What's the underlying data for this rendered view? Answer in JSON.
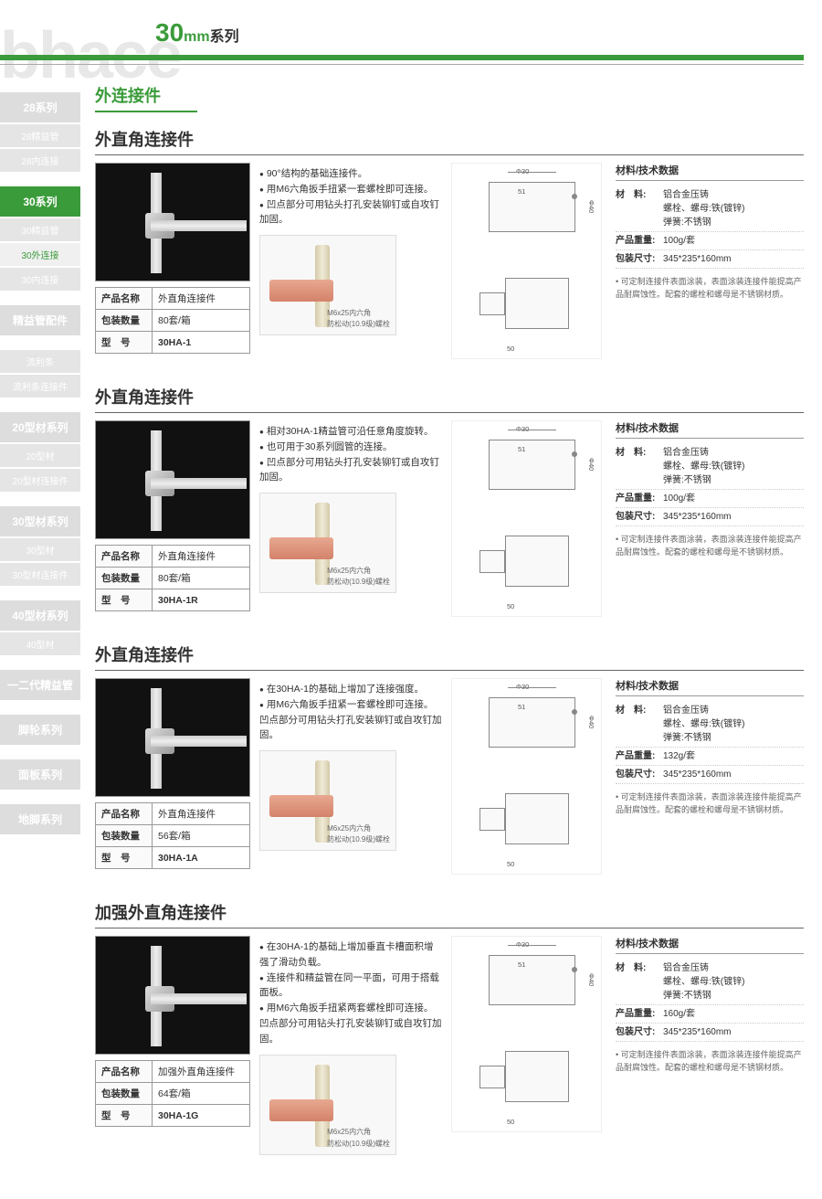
{
  "brand": "bhace",
  "header": {
    "num": "30",
    "mm": "mm",
    "sub": "系列"
  },
  "sectionTitle": "外连接件",
  "nav": [
    {
      "t": "28系列",
      "cls": "nav-item"
    },
    {
      "t": "28精益管",
      "cls": "nav-item sub"
    },
    {
      "t": "28内连接",
      "cls": "nav-item sub"
    },
    {
      "cls": "nav-gap"
    },
    {
      "t": "30系列",
      "cls": "nav-item active"
    },
    {
      "t": "30精益管",
      "cls": "nav-item sub"
    },
    {
      "t": "30外连接",
      "cls": "nav-item sub active-sub"
    },
    {
      "t": "30内连接",
      "cls": "nav-item sub"
    },
    {
      "cls": "nav-gap"
    },
    {
      "t": "精益管配件",
      "cls": "nav-item"
    },
    {
      "cls": "nav-gap"
    },
    {
      "t": "流利条",
      "cls": "nav-item sub"
    },
    {
      "t": "流利条连接件",
      "cls": "nav-item sub"
    },
    {
      "cls": "nav-gap"
    },
    {
      "t": "20型材系列",
      "cls": "nav-item"
    },
    {
      "t": "20型材",
      "cls": "nav-item sub"
    },
    {
      "t": "20型材连接件",
      "cls": "nav-item sub"
    },
    {
      "cls": "nav-gap"
    },
    {
      "t": "30型材系列",
      "cls": "nav-item"
    },
    {
      "t": "30型材",
      "cls": "nav-item sub"
    },
    {
      "t": "30型材连接件",
      "cls": "nav-item sub"
    },
    {
      "cls": "nav-gap"
    },
    {
      "t": "40型材系列",
      "cls": "nav-item"
    },
    {
      "t": "40型材",
      "cls": "nav-item sub"
    },
    {
      "cls": "nav-gap"
    },
    {
      "t": "一二代精益管",
      "cls": "nav-item"
    },
    {
      "cls": "nav-gap"
    },
    {
      "t": "脚轮系列",
      "cls": "nav-item"
    },
    {
      "cls": "nav-gap"
    },
    {
      "t": "面板系列",
      "cls": "nav-item"
    },
    {
      "cls": "nav-gap"
    },
    {
      "t": "地脚系列",
      "cls": "nav-item"
    }
  ],
  "specLabels": {
    "name": "产品名称",
    "pack": "包装数量",
    "model": "型　号"
  },
  "dataLabels": {
    "title": "材料/技术数据",
    "mat": "材　料:",
    "weight": "产品重量:",
    "box": "包装尺寸:"
  },
  "screwNote": "M6x25内六角\n防松动(10.9级)螺栓",
  "dims": {
    "d30": "Φ30",
    "d40": "Φ40",
    "w50": "50",
    "w51": "51",
    "w50_5": "50.5",
    "w25": "25",
    "h61": "61"
  },
  "products": [
    {
      "title": "外直角连接件",
      "desc": [
        "90°结构的基础连接件。",
        "用M6六角扳手扭紧一套螺栓即可连接。",
        "凹点部分可用钻头打孔安装铆钉或自攻钉加固。"
      ],
      "spec": {
        "name": "外直角连接件",
        "pack": "80套/箱",
        "model": "30HA-1"
      },
      "data": {
        "mat": "铝合金压铸\n螺栓、螺母:铁(镀锌)\n弹簧:不锈钢",
        "weight": "100g/套",
        "box": "345*235*160mm"
      },
      "note": "可定制连接件表面涂装，表面涂装连接件能提高产品耐腐蚀性。配套的螺栓和螺母是不锈钢材质。"
    },
    {
      "title": "外直角连接件",
      "desc": [
        "相对30HA-1精益管可沿任意角度旋转。",
        "也可用于30系列圆管的连接。",
        "凹点部分可用钻头打孔安装铆钉或自攻钉加固。"
      ],
      "spec": {
        "name": "外直角连接件",
        "pack": "80套/箱",
        "model": "30HA-1R"
      },
      "data": {
        "mat": "铝合金压铸\n螺栓、螺母:铁(镀锌)\n弹簧:不锈钢",
        "weight": "100g/套",
        "box": "345*235*160mm"
      },
      "note": "可定制连接件表面涂装，表面涂装连接件能提高产品耐腐蚀性。配套的螺栓和螺母是不锈钢材质。"
    },
    {
      "title": "外直角连接件",
      "desc": [
        "在30HA-1的基础上增加了连接强度。",
        "用M6六角扳手扭紧一套螺栓即可连接。凹点部分可用钻头打孔安装铆钉或自攻钉加固。"
      ],
      "spec": {
        "name": "外直角连接件",
        "pack": "56套/箱",
        "model": "30HA-1A"
      },
      "data": {
        "mat": "铝合金压铸\n螺栓、螺母:铁(镀锌)\n弹簧:不锈钢",
        "weight": "132g/套",
        "box": "345*235*160mm"
      },
      "note": "可定制连接件表面涂装，表面涂装连接件能提高产品耐腐蚀性。配套的螺栓和螺母是不锈钢材质。"
    },
    {
      "title": "加强外直角连接件",
      "desc": [
        "在30HA-1的基础上增加垂直卡槽面积增强了滑动负载。",
        "连接件和精益管在同一平面，可用于搭载面板。",
        "用M6六角扳手扭紧两套螺栓即可连接。凹点部分可用钻头打孔安装铆钉或自攻钉加固。"
      ],
      "spec": {
        "name": "加强外直角连接件",
        "pack": "64套/箱",
        "model": "30HA-1G"
      },
      "data": {
        "mat": "铝合金压铸\n螺栓、螺母:铁(镀锌)\n弹簧:不锈钢",
        "weight": "160g/套",
        "box": "345*235*160mm"
      },
      "note": "可定制连接件表面涂装，表面涂装连接件能提高产品耐腐蚀性。配套的螺栓和螺母是不锈钢材质。"
    }
  ]
}
